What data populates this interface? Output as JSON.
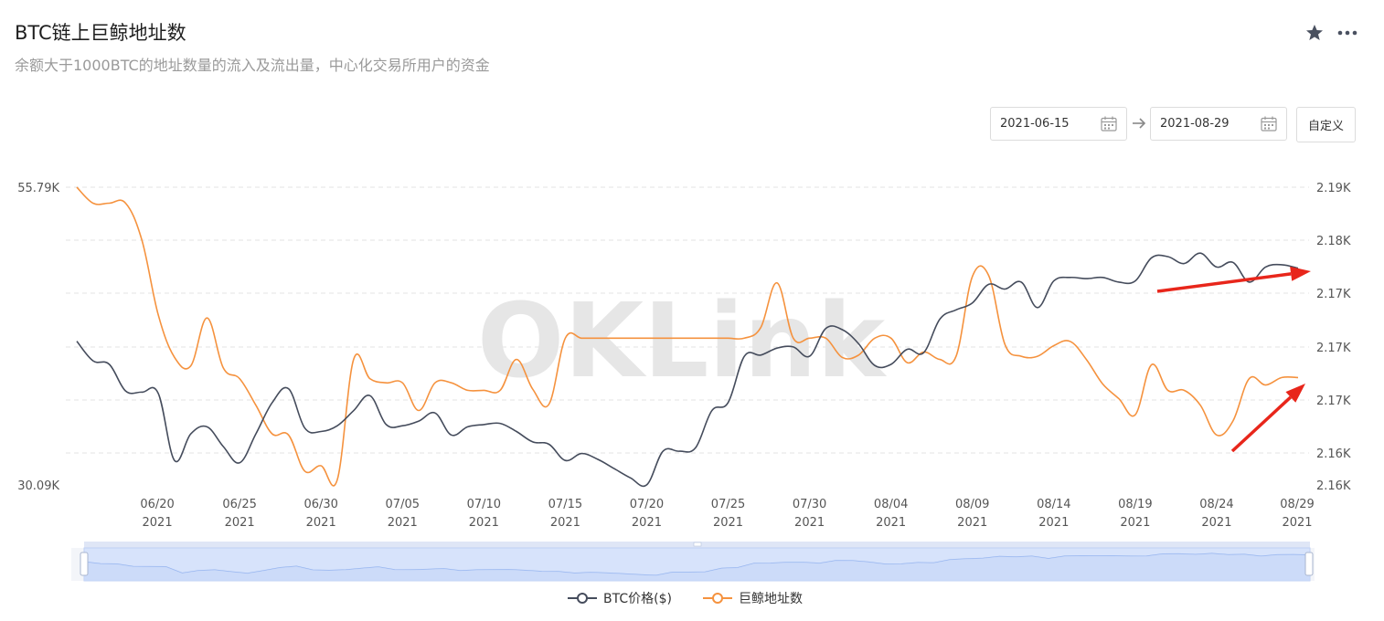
{
  "header": {
    "title": "BTC链上巨鲸地址数",
    "subtitle": "余额大于1000BTC的地址数量的流入及流出量，中心化交易所用户的资金",
    "icons": [
      "star-icon",
      "more-icon"
    ]
  },
  "date_range": {
    "start": "2021-06-15",
    "end": "2021-08-29",
    "custom_label": "自定义"
  },
  "watermark": "OKLink",
  "colors": {
    "price": "#454c5c",
    "whale": "#f5923e",
    "grid": "#e3e3e3",
    "annotation": "#e8261b",
    "slider": "#8fb0ee"
  },
  "chart_data": {
    "type": "line",
    "title": "",
    "x_start": "2021-06-15",
    "x_ticks": [
      {
        "label": [
          "06/20",
          "2021"
        ],
        "day": 5
      },
      {
        "label": [
          "06/25",
          "2021"
        ],
        "day": 10
      },
      {
        "label": [
          "06/30",
          "2021"
        ],
        "day": 15
      },
      {
        "label": [
          "07/05",
          "2021"
        ],
        "day": 20
      },
      {
        "label": [
          "07/10",
          "2021"
        ],
        "day": 25
      },
      {
        "label": [
          "07/15",
          "2021"
        ],
        "day": 30
      },
      {
        "label": [
          "07/20",
          "2021"
        ],
        "day": 35
      },
      {
        "label": [
          "07/25",
          "2021"
        ],
        "day": 40
      },
      {
        "label": [
          "07/30",
          "2021"
        ],
        "day": 45
      },
      {
        "label": [
          "08/04",
          "2021"
        ],
        "day": 50
      },
      {
        "label": [
          "08/09",
          "2021"
        ],
        "day": 55
      },
      {
        "label": [
          "08/14",
          "2021"
        ],
        "day": 60
      },
      {
        "label": [
          "08/19",
          "2021"
        ],
        "day": 65
      },
      {
        "label": [
          "08/24",
          "2021"
        ],
        "day": 70
      },
      {
        "label": [
          "08/29",
          "2021"
        ],
        "day": 75
      }
    ],
    "y_left": {
      "ticks": [
        "55.79K",
        "30.09K"
      ],
      "range": [
        30090,
        55790
      ]
    },
    "y_right": {
      "ticks": [
        "2.19K",
        "2.18K",
        "2.17K",
        "2.17K",
        "2.17K",
        "2.16K",
        "2.16K"
      ],
      "range": [
        2162,
        2190
      ]
    },
    "legend_position": "bottom-center",
    "grid": true,
    "series": [
      {
        "name": "BTC价格($)",
        "axis": "left",
        "color": "#454c5c",
        "values": [
          42500,
          40800,
          40500,
          38200,
          38100,
          38000,
          32200,
          34500,
          35100,
          33400,
          32000,
          34500,
          37200,
          38400,
          35000,
          34700,
          35200,
          36500,
          37800,
          35300,
          35200,
          35600,
          36300,
          34400,
          35100,
          35300,
          35400,
          34700,
          33800,
          33600,
          32200,
          32800,
          32300,
          31500,
          30700,
          30100,
          33000,
          33000,
          33300,
          36500,
          37200,
          41200,
          41300,
          41900,
          42000,
          41200,
          43600,
          43500,
          42300,
          40400,
          40500,
          41800,
          41500,
          44400,
          45200,
          45800,
          47400,
          47000,
          47600,
          45400,
          47700,
          48000,
          47900,
          48000,
          47600,
          47700,
          49700,
          49800,
          49200,
          50100,
          48900,
          49300,
          47600,
          48900,
          49100,
          48800
        ]
      },
      {
        "name": "巨鲸地址数",
        "axis": "right",
        "color": "#f5923e",
        "values": [
          2190,
          2188.5,
          2188.5,
          2188.5,
          2185,
          2178,
          2174,
          2173.2,
          2177.7,
          2173,
          2172,
          2169.5,
          2166.8,
          2166.7,
          2163.3,
          2163.8,
          2162.5,
          2173.8,
          2172,
          2171.6,
          2171.6,
          2169,
          2171.6,
          2171.6,
          2170.9,
          2170.9,
          2170.9,
          2173.8,
          2171,
          2169.6,
          2175.8,
          2175.8,
          2175.8,
          2175.8,
          2175.8,
          2175.8,
          2175.8,
          2175.8,
          2175.8,
          2175.8,
          2175.8,
          2175.8,
          2176.8,
          2181,
          2175.8,
          2175.8,
          2175.8,
          2174,
          2174.2,
          2175.8,
          2175.8,
          2173.5,
          2174.5,
          2173.8,
          2174.1,
          2181.6,
          2181.7,
          2175.2,
          2174.1,
          2174.1,
          2175.1,
          2175.5,
          2173.8,
          2171.5,
          2170.1,
          2168.6,
          2173.3,
          2170.9,
          2170.9,
          2169.5,
          2166.7,
          2168,
          2172,
          2171.4,
          2172.1,
          2172.1
        ]
      }
    ],
    "annotations": [
      "arrow-upper",
      "arrow-lower"
    ]
  },
  "legend": [
    {
      "label": "BTC价格($)",
      "color": "#454c5c"
    },
    {
      "label": "巨鲸地址数",
      "color": "#f5923e"
    }
  ]
}
